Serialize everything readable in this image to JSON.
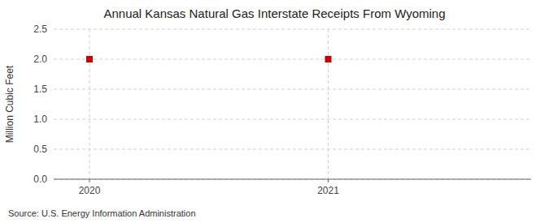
{
  "chart_data": {
    "type": "scatter",
    "title": "Annual Kansas Natural Gas Interstate Receipts From Wyoming",
    "y_label": "Million Cubic Feet",
    "source": "Source: U.S. Energy Information Administration",
    "x": [
      2020,
      2021
    ],
    "values": [
      2.0,
      2.0
    ],
    "color": "#cc0000",
    "marker": "square",
    "xlim": [
      2019.85,
      2021.85
    ],
    "ylim": [
      0.0,
      2.5
    ],
    "xticks": [
      2020,
      2021
    ],
    "yticks": [
      {
        "value": 0.0,
        "label": "0.0"
      },
      0.5,
      {
        "value": 1.0,
        "label": "1.0"
      },
      1.5,
      {
        "value": 2.0,
        "label": "2.0"
      },
      2.5
    ],
    "grid": true
  }
}
